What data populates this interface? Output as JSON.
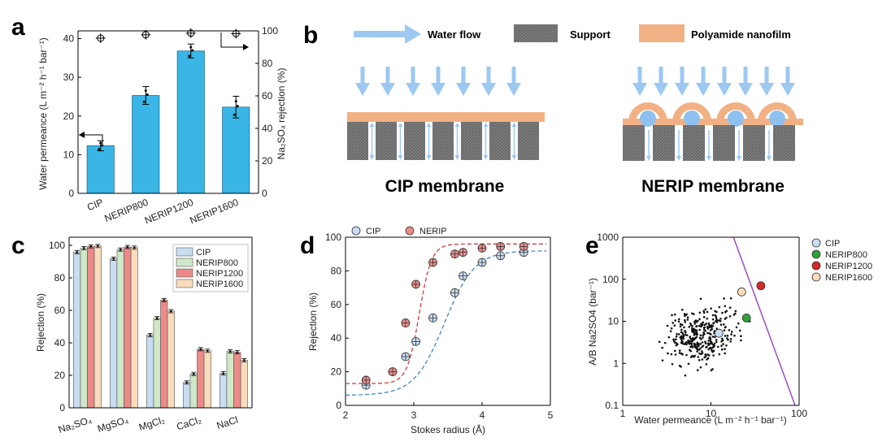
{
  "panel_labels": {
    "a": "a",
    "b": "b",
    "c": "c",
    "d": "d",
    "e": "e"
  },
  "colors": {
    "bar_blue": "#39b6e6",
    "cip_fill": "#c9ddf2",
    "nerip800_fill": "#cfe8c7",
    "nerip1200_fill": "#ec8a8a",
    "nerip1600_fill": "#f8dcbc",
    "support_gray": "#7a7a7a",
    "polyamide": "#f2b184",
    "water_blue": "#9cc8f2",
    "fit_blue": "#3d86c6",
    "fit_red": "#d23a3a",
    "trade_off_line": "#9d4cc0"
  },
  "diagram": {
    "legend": {
      "water_flow": "Water flow",
      "support": "Support",
      "polyamide": "Polyamide nanofilm"
    },
    "cip_caption": "CIP membrane",
    "nerip_caption": "NERIP membrane"
  },
  "chart_data": [
    {
      "id": "a",
      "type": "bar",
      "categories": [
        "CIP",
        "NERIP800",
        "NERIP1200",
        "NERIP1600"
      ],
      "series": [
        {
          "name": "Water permeance",
          "values": [
            12.3,
            25.3,
            36.8,
            22.3
          ],
          "errors": [
            1.3,
            2.3,
            1.8,
            2.8
          ]
        },
        {
          "name": "Na2SO4 rejection",
          "values": [
            95.5,
            97.6,
            98.6,
            98.3
          ],
          "axis": "right"
        }
      ],
      "ylabel": "Water permeance (L m⁻² h⁻¹ bar⁻¹)",
      "y2label": "Na₂SO₄ rejection (%)",
      "ylim": [
        0,
        42
      ],
      "y2lim": [
        0,
        100
      ],
      "yticks": [
        "0",
        "10",
        "20",
        "30",
        "40"
      ],
      "y2ticks": [
        "0",
        "20",
        "40",
        "60",
        "80",
        "100"
      ]
    },
    {
      "id": "c",
      "type": "bar",
      "categories": [
        "Na₂SO₄",
        "MgSO₄",
        "MgCl₂",
        "CaCl₂",
        "NaCl"
      ],
      "series": [
        {
          "name": "CIP",
          "values": [
            95.8,
            91.8,
            44.8,
            15.6,
            21.2
          ]
        },
        {
          "name": "NERIP800",
          "values": [
            98.3,
            97.4,
            55.2,
            20.9,
            34.8
          ]
        },
        {
          "name": "NERIP1200",
          "values": [
            99.4,
            99.0,
            66.3,
            36.1,
            34.2
          ]
        },
        {
          "name": "NERIP1600",
          "values": [
            99.6,
            98.6,
            59.5,
            35.1,
            29.3
          ]
        }
      ],
      "ylabel": "Rejection (%)",
      "ylim": [
        0,
        105
      ],
      "yticks": [
        "0",
        "20",
        "40",
        "60",
        "80",
        "100"
      ]
    },
    {
      "id": "d",
      "type": "scatter",
      "series": [
        {
          "name": "CIP",
          "x": [
            2.3,
            2.69,
            2.88,
            3.03,
            3.28,
            3.6,
            3.72,
            4.0,
            4.27,
            4.61
          ],
          "y": [
            12,
            20,
            29,
            38,
            52,
            67,
            77,
            85,
            89,
            91
          ]
        },
        {
          "name": "NERIP",
          "x": [
            2.3,
            2.69,
            2.88,
            3.03,
            3.28,
            3.6,
            3.72,
            4.0,
            4.27,
            4.61
          ],
          "y": [
            15,
            20,
            49,
            72,
            85,
            90,
            91,
            93.5,
            94.5,
            94.5
          ]
        }
      ],
      "xlabel": "Stokes radius (Å)",
      "ylabel": "Rejection (%)",
      "xlim": [
        2,
        5
      ],
      "ylim": [
        0,
        100
      ],
      "xticks": [
        "2",
        "3",
        "4",
        "5"
      ],
      "yticks": [
        "0",
        "20",
        "40",
        "60",
        "80",
        "100"
      ]
    },
    {
      "id": "e",
      "type": "scatter",
      "xscale": "log",
      "yscale": "log",
      "xlabel": "Water permeance (L m⁻² h⁻¹ bar⁻¹)",
      "ylabel": "A/B Na2SO4 (bar⁻¹)",
      "xlim": [
        1,
        100
      ],
      "ylim": [
        0.1,
        1000
      ],
      "xticks": [
        "1",
        "10",
        "100"
      ],
      "yticks": [
        "0.1",
        "1",
        "10",
        "100",
        "1000"
      ],
      "highlighted": [
        {
          "name": "CIP",
          "x": 12.3,
          "y": 5.2
        },
        {
          "name": "NERIP800",
          "x": 25.3,
          "y": 12
        },
        {
          "name": "NERIP1200",
          "x": 36.8,
          "y": 70
        },
        {
          "name": "NERIP1600",
          "x": 22.3,
          "y": 50
        }
      ],
      "trade_off_line": {
        "x": [
          18,
          90
        ],
        "y": [
          1000,
          0.1
        ]
      },
      "literature_point_count": 320
    }
  ]
}
